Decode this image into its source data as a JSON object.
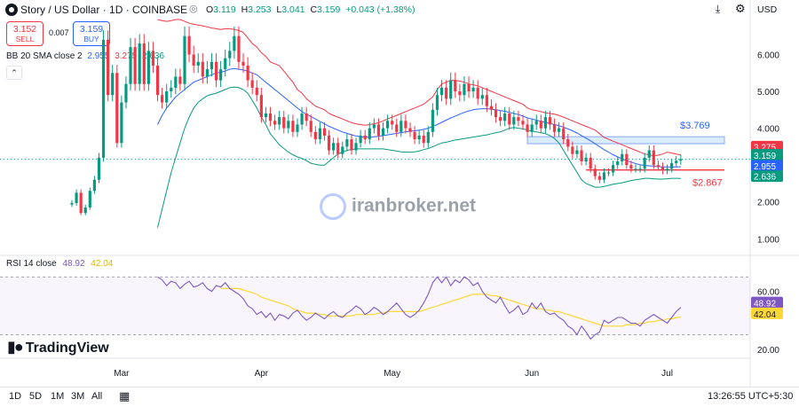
{
  "header": {
    "title": "Story / US Dollar · 1D · COINBASE",
    "ohlc": [
      {
        "k": "O",
        "v": "3.119"
      },
      {
        "k": "H",
        "v": "3.253"
      },
      {
        "k": "L",
        "v": "3.041"
      },
      {
        "k": "C",
        "v": "3.159"
      }
    ],
    "change": "+0.043 (+1.38%)",
    "currency": "USD"
  },
  "trade": {
    "sell_price": "3.152",
    "sell_label": "SELL",
    "buy_price": "3.159",
    "buy_label": "BUY",
    "spread": "0.007"
  },
  "bb_legend": {
    "name": "BB 20 SMA close 2",
    "basis": "2.955",
    "upper": "3.275",
    "lower": "2.636"
  },
  "rsi_legend": {
    "name": "RSI 14 close",
    "rsi": "48.92",
    "ma": "42.04"
  },
  "watermark": "iranbroker.net",
  "brand": "TradingView",
  "colors": {
    "up": "#089981",
    "down": "#f23645",
    "basis": "#2962ff",
    "upper": "#f23645",
    "lower": "#089981",
    "rsi": "#7e57c2",
    "rsi_ma": "#fdd835"
  },
  "timeframes": [
    "1D",
    "5D",
    "1M",
    "3M",
    "All"
  ],
  "clock": "13:26:55 UTC+5:30",
  "chart_data": {
    "type": "candlestick",
    "price_axis": [
      "6.000",
      "5.000",
      "4.000",
      "3.000",
      "2.000",
      "1.000"
    ],
    "price_ticks": [
      6,
      5,
      4,
      3,
      2,
      1
    ],
    "price_range": [
      0.55,
      6.95
    ],
    "rsi_axis": [
      "60.00",
      "20.00"
    ],
    "rsi_ticks": [
      60,
      20
    ],
    "rsi_levels": [
      70,
      30
    ],
    "rsi_range": [
      15,
      80
    ],
    "x_labels": [
      "Mar",
      "Apr",
      "May",
      "Jun",
      "Jul"
    ],
    "x_label_index": [
      11,
      42,
      71,
      102,
      132
    ],
    "last_labels": {
      "upper": "3.275",
      "close": "3.159",
      "countdown": "16:03:05",
      "basis": "2.955",
      "lower": "2.636"
    },
    "annotations": {
      "zone_label": "$3.769",
      "zone_range": [
        3.58,
        3.77
      ],
      "support_label": "$2.867",
      "support_level": 2.867
    },
    "closes": [
      1.97,
      2.25,
      1.7,
      1.85,
      2.3,
      2.6,
      3.2,
      6.4,
      4.9,
      5.5,
      3.6,
      4.7,
      5.2,
      6.2,
      5.2,
      6.3,
      5.2,
      6.1,
      5.7,
      4.9,
      4.7,
      5.0,
      5.1,
      5.4,
      5.2,
      6.5,
      6.0,
      5.7,
      5.8,
      5.4,
      5.6,
      5.8,
      5.3,
      5.6,
      5.9,
      6.1,
      6.5,
      5.8,
      5.7,
      5.3,
      5.1,
      4.9,
      4.3,
      4.4,
      4.2,
      4.1,
      4.3,
      4.0,
      4.2,
      3.9,
      4.1,
      4.4,
      4.2,
      3.9,
      3.7,
      4.0,
      3.8,
      3.4,
      3.6,
      3.3,
      3.5,
      3.7,
      3.4,
      3.6,
      3.8,
      3.7,
      4.0,
      4.1,
      3.8,
      4.0,
      4.2,
      4.1,
      3.9,
      4.2,
      4.0,
      3.9,
      3.7,
      3.8,
      3.6,
      3.9,
      4.5,
      4.9,
      5.1,
      4.8,
      5.3,
      5.0,
      4.9,
      5.2,
      5.0,
      5.1,
      4.8,
      4.9,
      4.6,
      4.5,
      4.3,
      4.2,
      4.4,
      4.1,
      4.3,
      4.2,
      4.1,
      3.9,
      4.1,
      4.2,
      4.0,
      4.3,
      4.1,
      3.9,
      4.0,
      3.7,
      3.5,
      3.3,
      3.4,
      3.1,
      3.2,
      2.9,
      2.7,
      2.6,
      2.8,
      2.8,
      3.0,
      3.1,
      3.3,
      3.0,
      2.9,
      2.9,
      2.9,
      3.2,
      3.4,
      3.0,
      2.95,
      2.85,
      2.9,
      3.05,
      3.119,
      3.159
    ],
    "upper_band": [
      null,
      null,
      null,
      null,
      null,
      null,
      null,
      null,
      null,
      null,
      null,
      null,
      null,
      null,
      null,
      null,
      null,
      null,
      null,
      6.95,
      6.92,
      6.9,
      6.92,
      6.95,
      6.95,
      6.9,
      6.85,
      6.82,
      6.8,
      6.78,
      6.75,
      6.72,
      6.7,
      6.68,
      6.7,
      6.7,
      6.68,
      6.65,
      6.6,
      6.45,
      6.3,
      6.2,
      6.05,
      5.95,
      5.8,
      5.75,
      5.7,
      5.55,
      5.4,
      5.25,
      5.05,
      4.95,
      4.8,
      4.7,
      4.6,
      4.55,
      4.5,
      4.4,
      4.35,
      4.3,
      4.25,
      4.2,
      4.15,
      4.12,
      4.1,
      4.08,
      4.1,
      4.12,
      4.15,
      4.2,
      4.25,
      4.3,
      4.35,
      4.4,
      4.45,
      4.5,
      4.55,
      4.6,
      4.65,
      4.75,
      4.85,
      5.05,
      5.2,
      5.25,
      5.3,
      5.3,
      5.28,
      5.25,
      5.2,
      5.18,
      5.15,
      5.1,
      5.05,
      5.0,
      4.95,
      4.9,
      4.85,
      4.8,
      4.75,
      4.7,
      4.65,
      4.55,
      4.5,
      4.48,
      4.45,
      4.42,
      4.4,
      4.38,
      4.35,
      4.3,
      4.25,
      4.2,
      4.15,
      4.1,
      4.05,
      4.0,
      3.95,
      3.85,
      3.75,
      3.7,
      3.65,
      3.6,
      3.55,
      3.5,
      3.45,
      3.4,
      3.35,
      3.3,
      3.28,
      3.25,
      3.27,
      3.3,
      3.35,
      3.33,
      3.3,
      3.275
    ],
    "basis": [
      null,
      null,
      null,
      null,
      null,
      null,
      null,
      null,
      null,
      null,
      null,
      null,
      null,
      null,
      null,
      null,
      null,
      null,
      null,
      4.1,
      4.35,
      4.55,
      4.7,
      4.85,
      4.95,
      5.05,
      5.15,
      5.25,
      5.3,
      5.35,
      5.4,
      5.45,
      5.5,
      5.52,
      5.55,
      5.6,
      5.62,
      5.6,
      5.58,
      5.55,
      5.5,
      5.45,
      5.35,
      5.25,
      5.15,
      5.05,
      4.95,
      4.85,
      4.75,
      4.65,
      4.55,
      4.45,
      4.38,
      4.32,
      4.25,
      4.18,
      4.12,
      4.05,
      4.0,
      3.95,
      3.9,
      3.86,
      3.82,
      3.79,
      3.77,
      3.76,
      3.76,
      3.77,
      3.78,
      3.8,
      3.82,
      3.84,
      3.86,
      3.88,
      3.9,
      3.92,
      3.93,
      3.95,
      3.97,
      4.0,
      4.05,
      4.1,
      4.16,
      4.22,
      4.28,
      4.33,
      4.38,
      4.43,
      4.47,
      4.5,
      4.52,
      4.53,
      4.53,
      4.52,
      4.5,
      4.48,
      4.46,
      4.43,
      4.4,
      4.37,
      4.33,
      4.28,
      4.25,
      4.22,
      4.19,
      4.16,
      4.13,
      4.1,
      4.07,
      4.03,
      3.98,
      3.93,
      3.87,
      3.8,
      3.73,
      3.66,
      3.58,
      3.5,
      3.42,
      3.35,
      3.28,
      3.22,
      3.17,
      3.12,
      3.08,
      3.04,
      3.01,
      2.99,
      2.98,
      2.97,
      2.96,
      2.95,
      2.95,
      2.95,
      2.95,
      2.955
    ],
    "lower_band": [
      null,
      null,
      null,
      null,
      null,
      null,
      null,
      null,
      null,
      null,
      null,
      null,
      null,
      null,
      null,
      null,
      null,
      null,
      null,
      1.3,
      1.8,
      2.3,
      2.8,
      3.2,
      3.6,
      4.0,
      4.3,
      4.55,
      4.7,
      4.8,
      4.88,
      4.92,
      4.95,
      5.0,
      5.05,
      5.1,
      5.12,
      5.1,
      5.05,
      4.95,
      4.75,
      4.55,
      4.3,
      4.1,
      3.85,
      3.7,
      3.55,
      3.45,
      3.35,
      3.28,
      3.22,
      3.18,
      3.12,
      3.05,
      3.02,
      3.0,
      3.0,
      3.1,
      3.2,
      3.3,
      3.35,
      3.4,
      3.42,
      3.44,
      3.44,
      3.44,
      3.44,
      3.44,
      3.44,
      3.44,
      3.42,
      3.4,
      3.38,
      3.36,
      3.35,
      3.35,
      3.36,
      3.38,
      3.42,
      3.45,
      3.5,
      3.55,
      3.6,
      3.62,
      3.65,
      3.68,
      3.7,
      3.72,
      3.74,
      3.76,
      3.78,
      3.8,
      3.82,
      3.85,
      3.88,
      3.9,
      3.95,
      4.0,
      4.02,
      4.0,
      3.98,
      3.95,
      3.92,
      3.9,
      3.88,
      3.85,
      3.8,
      3.72,
      3.6,
      3.4,
      3.2,
      3.0,
      2.8,
      2.6,
      2.5,
      2.45,
      2.4,
      2.4,
      2.42,
      2.45,
      2.48,
      2.5,
      2.52,
      2.55,
      2.58,
      2.6,
      2.62,
      2.64,
      2.64,
      2.63,
      2.62,
      2.62,
      2.63,
      2.64,
      2.64,
      2.636
    ],
    "rsi": [
      null,
      null,
      null,
      null,
      null,
      null,
      null,
      null,
      null,
      null,
      null,
      null,
      null,
      null,
      null,
      null,
      null,
      null,
      null,
      70,
      68,
      64,
      67,
      66,
      62,
      65,
      67,
      63,
      64,
      66,
      62,
      60,
      64,
      63,
      66,
      62,
      60,
      58,
      55,
      50,
      48,
      44,
      46,
      42,
      45,
      40,
      44,
      43,
      41,
      45,
      47,
      43,
      40,
      42,
      45,
      43,
      41,
      44,
      46,
      43,
      42,
      45,
      47,
      50,
      48,
      44,
      46,
      49,
      47,
      44,
      46,
      49,
      52,
      48,
      44,
      42,
      44,
      47,
      52,
      58,
      66,
      70,
      66,
      70,
      64,
      68,
      66,
      70,
      68,
      64,
      66,
      60,
      56,
      54,
      52,
      56,
      50,
      45,
      47,
      50,
      44,
      46,
      52,
      48,
      52,
      46,
      44,
      45,
      42,
      40,
      36,
      34,
      30,
      36,
      32,
      27,
      30,
      32,
      40,
      38,
      40,
      42,
      42,
      40,
      38,
      38,
      36,
      40,
      42,
      44,
      42,
      40,
      38,
      42,
      46,
      48.92
    ],
    "rsi_ma": [
      null,
      null,
      null,
      null,
      null,
      null,
      null,
      null,
      null,
      null,
      null,
      null,
      null,
      null,
      null,
      null,
      null,
      null,
      null,
      null,
      null,
      null,
      null,
      null,
      null,
      null,
      null,
      null,
      null,
      null,
      null,
      null,
      null,
      62,
      62,
      62,
      62,
      62,
      61,
      60,
      59,
      58,
      56,
      55,
      54,
      53,
      52,
      51,
      50,
      48,
      47,
      46,
      45,
      45,
      45,
      44,
      44,
      43,
      43,
      43,
      43,
      43,
      43,
      44,
      44,
      44,
      44,
      44,
      45,
      45,
      46,
      46,
      46,
      46,
      46,
      46,
      46,
      46,
      47,
      48,
      49,
      50,
      51,
      52,
      53,
      54,
      55,
      56,
      57,
      58,
      58,
      58,
      58,
      57,
      57,
      56,
      55,
      54,
      53,
      52,
      51,
      50,
      49,
      48,
      48,
      47,
      47,
      46,
      46,
      45,
      44,
      43,
      42,
      41,
      40,
      39,
      38,
      37,
      36,
      36,
      36,
      36,
      36,
      37,
      37,
      37,
      38,
      38,
      39,
      39,
      40,
      40,
      41,
      41,
      42,
      42.04
    ]
  }
}
